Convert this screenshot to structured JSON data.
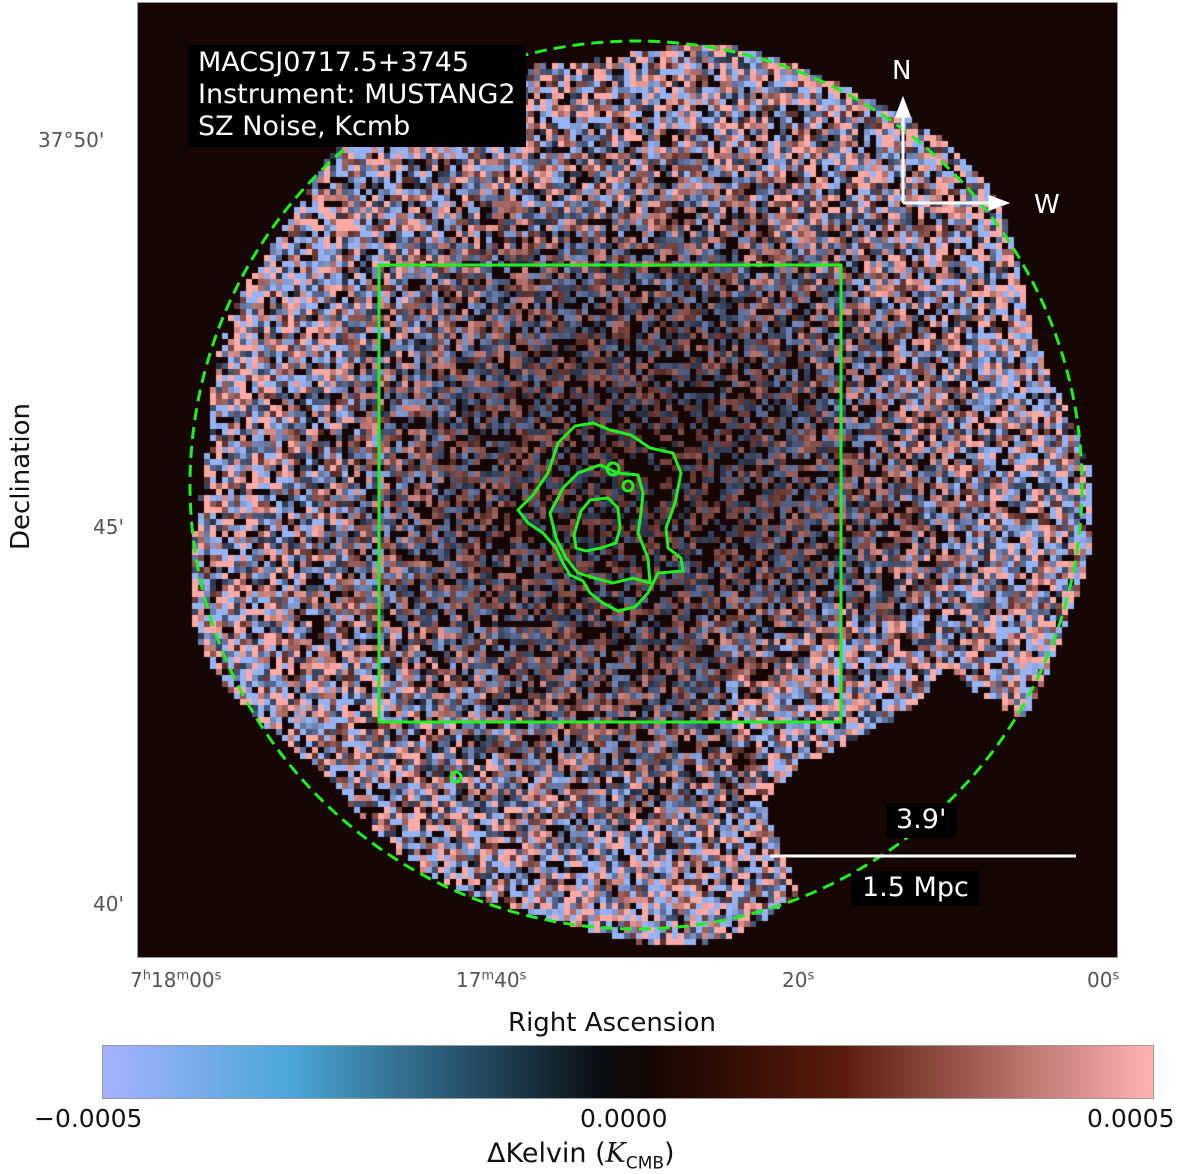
{
  "annotation": {
    "line1": "MACSJ0717.5+3745",
    "line2": "Instrument: MUSTANG2",
    "line3": "SZ Noise, Kcmb"
  },
  "compass": {
    "north": "N",
    "west": "W"
  },
  "scalebar": {
    "angular": "3.9'",
    "physical": "1.5 Mpc"
  },
  "axes": {
    "xlabel": "Right Ascension",
    "ylabel": "Declination",
    "dec_ticks": [
      {
        "deg": "37°50'"
      },
      {
        "deg": "45'"
      },
      {
        "deg": "40'"
      }
    ],
    "ra_ticks": [
      {
        "h": "7",
        "hs": "h",
        "m": "18",
        "ms": "m",
        "s": "00",
        "ss": "s"
      },
      {
        "m": "17",
        "ms": "m",
        "s": "40",
        "ss": "s"
      },
      {
        "s": "20",
        "ss": "s"
      },
      {
        "s": "00",
        "ss": "s"
      }
    ]
  },
  "colorbar": {
    "min_label": "−0.0005",
    "mid_label": "0.0000",
    "max_label": "0.0005",
    "label_prefix": "ΔKelvin (",
    "label_K": "K",
    "label_sub": "CMB",
    "label_suffix": ")",
    "colors": [
      "#a6b2ff",
      "#4aa6d8",
      "#0a0c10",
      "#150603",
      "#5a1a0a",
      "#ffb3b3"
    ]
  },
  "overlay_colors": {
    "contour": "#22ee22",
    "text_box": "#000000",
    "compass": "#ffffff"
  }
}
